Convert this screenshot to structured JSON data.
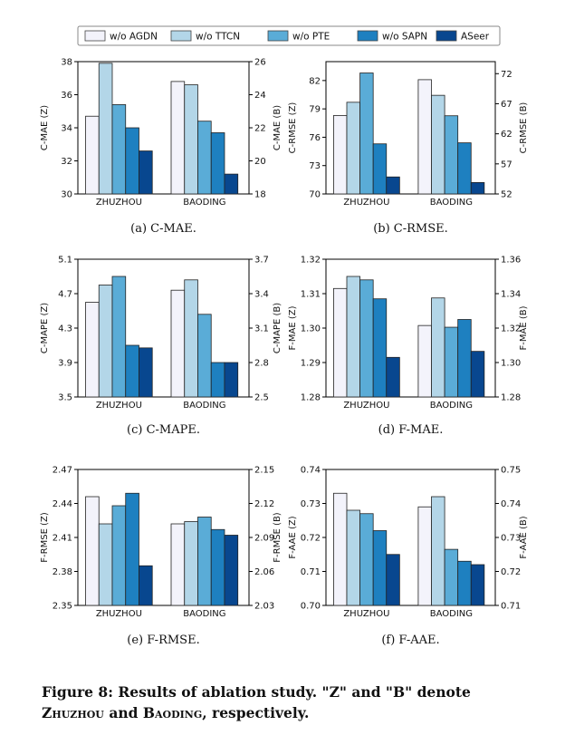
{
  "legend": [
    "w/o AGDN",
    "w/o TTCN",
    "w/o PTE",
    "w/o SAPN",
    "ASeer"
  ],
  "colors": [
    "#f3f3fb",
    "#b3d6e8",
    "#5aacd7",
    "#1e80c0",
    "#08478f"
  ],
  "caption": {
    "prefix": "Figure 8: Results of ablation study. \"Z\" and \"B\" denote",
    "z_name": "Zhuzhou",
    "and": "and",
    "b_name": "Baoding",
    "suffix": ", respectively."
  },
  "chart_data": [
    {
      "type": "bar",
      "id": "a",
      "caption": "(a) C-MAE.",
      "categories": [
        "ZHUZHOU",
        "BAODING"
      ],
      "left_label": "C-MAE (Z)",
      "right_label": "C-MAE (B)",
      "left_ylim": [
        30,
        38
      ],
      "left_ticks": [
        "30",
        "32",
        "34",
        "36",
        "38"
      ],
      "right_ylim": [
        18,
        26
      ],
      "right_ticks": [
        "18",
        "20",
        "22",
        "24",
        "26"
      ],
      "zhuzhou": [
        34.7,
        37.9,
        35.4,
        34.0,
        32.6
      ],
      "baoding": [
        24.8,
        24.6,
        22.4,
        21.7,
        19.2
      ]
    },
    {
      "type": "bar",
      "id": "b",
      "caption": "(b) C-RMSE.",
      "categories": [
        "ZHUZHOU",
        "BAODING"
      ],
      "left_label": "C-RMSE (Z)",
      "right_label": "C-RMSE (B)",
      "left_ylim": [
        70,
        84
      ],
      "left_ticks": [
        "70",
        "73",
        "76",
        "79",
        "82"
      ],
      "right_ylim": [
        52,
        74
      ],
      "right_ticks": [
        "52",
        "57",
        "62",
        "67",
        "72"
      ],
      "zhuzhou": [
        78.3,
        79.7,
        82.8,
        75.3,
        71.8
      ],
      "baoding": [
        71.0,
        68.4,
        65.0,
        60.5,
        53.9
      ]
    },
    {
      "type": "bar",
      "id": "c",
      "caption": "(c) C-MAPE.",
      "categories": [
        "ZHUZHOU",
        "BAODING"
      ],
      "left_label": "C-MAPE (Z)",
      "right_label": "C-MAPE (B)",
      "left_ylim": [
        3.5,
        5.1
      ],
      "left_ticks": [
        "3.5",
        "3.9",
        "4.3",
        "4.7",
        "5.1"
      ],
      "right_ylim": [
        2.5,
        3.7
      ],
      "right_ticks": [
        "2.5",
        "2.8",
        "3.1",
        "3.4",
        "3.7"
      ],
      "zhuzhou": [
        4.6,
        4.8,
        4.9,
        4.1,
        4.07
      ],
      "baoding": [
        3.43,
        3.52,
        3.22,
        2.8,
        2.8
      ]
    },
    {
      "type": "bar",
      "id": "d",
      "caption": "(d) F-MAE.",
      "categories": [
        "ZHUZHOU",
        "BAODING"
      ],
      "left_label": "F-MAE (Z)",
      "right_label": "F-MAE (B)",
      "left_ylim": [
        1.28,
        1.32
      ],
      "left_ticks": [
        "1.28",
        "1.29",
        "1.30",
        "1.31",
        "1.32"
      ],
      "right_ylim": [
        1.28,
        1.36
      ],
      "right_ticks": [
        "1.28",
        "1.30",
        "1.32",
        "1.34",
        "1.36"
      ],
      "zhuzhou": [
        1.3115,
        1.315,
        1.314,
        1.3085,
        1.2915
      ],
      "baoding": [
        1.3215,
        1.3375,
        1.3205,
        1.325,
        1.3065
      ]
    },
    {
      "type": "bar",
      "id": "e",
      "caption": "(e) F-RMSE.",
      "categories": [
        "ZHUZHOU",
        "BAODING"
      ],
      "left_label": "F-RMSE (Z)",
      "right_label": "F-RMSE (B)",
      "left_ylim": [
        2.35,
        2.47
      ],
      "left_ticks": [
        "2.35",
        "2.38",
        "2.41",
        "2.44",
        "2.47"
      ],
      "right_ylim": [
        2.03,
        2.15
      ],
      "right_ticks": [
        "2.03",
        "2.06",
        "2.09",
        "2.12",
        "2.15"
      ],
      "zhuzhou": [
        2.446,
        2.422,
        2.438,
        2.449,
        2.385
      ],
      "baoding": [
        2.102,
        2.104,
        2.108,
        2.097,
        2.092
      ]
    },
    {
      "type": "bar",
      "id": "f",
      "caption": "(f) F-AAE.",
      "categories": [
        "ZHUZHOU",
        "BAODING"
      ],
      "left_label": "F-AAE (Z)",
      "right_label": "F-AAE (B)",
      "left_ylim": [
        0.7,
        0.74
      ],
      "left_ticks": [
        "0.70",
        "0.71",
        "0.72",
        "0.73",
        "0.74"
      ],
      "right_ylim": [
        0.71,
        0.75
      ],
      "right_ticks": [
        "0.71",
        "0.72",
        "0.73",
        "0.74",
        "0.75"
      ],
      "zhuzhou": [
        0.733,
        0.728,
        0.727,
        0.722,
        0.715
      ],
      "baoding": [
        0.739,
        0.742,
        0.7265,
        0.723,
        0.722
      ]
    }
  ]
}
